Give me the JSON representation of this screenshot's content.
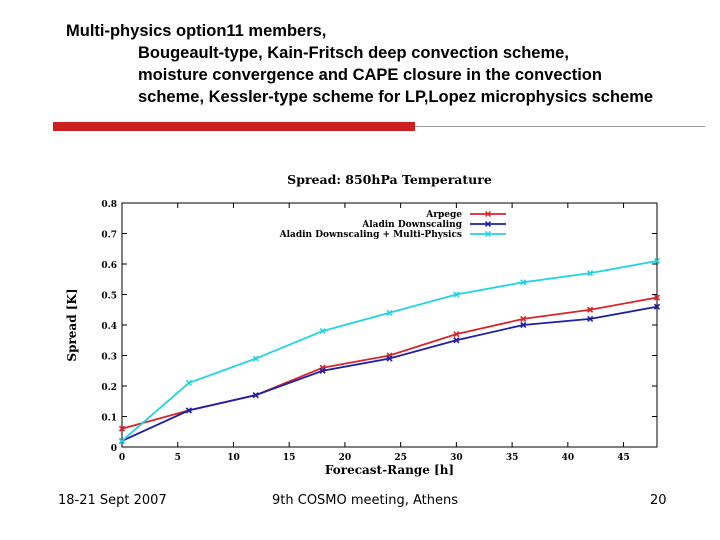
{
  "slide": {
    "title_lines": [
      "Multi-physics option11 members,",
      "Bougeault-type, Kain-Fritsch deep convection scheme,",
      "moisture convergence and CAPE closure in the convection",
      "scheme, Kessler-type scheme for LP,Lopez microphysics scheme"
    ],
    "footer": {
      "left": "18-21 Sept 2007",
      "center": "9th COSMO meeting, Athens",
      "right": "20"
    },
    "accent_color": "#cc1f1f"
  },
  "chart_data": {
    "type": "line",
    "title": "Spread: 850hPa Temperature",
    "xlabel": "Forecast-Range [h]",
    "ylabel": "Spread [K]",
    "xlim": [
      0,
      48
    ],
    "ylim": [
      0,
      0.8
    ],
    "xticks": [
      0,
      5,
      10,
      15,
      20,
      25,
      30,
      35,
      40,
      45
    ],
    "yticks": [
      0,
      0.1,
      0.2,
      0.3,
      0.4,
      0.5,
      0.6,
      0.7,
      0.8
    ],
    "x": [
      0,
      6,
      12,
      18,
      24,
      30,
      36,
      42,
      48
    ],
    "legend_position": "top-right",
    "series": [
      {
        "name": "Arpege",
        "color": "#d9252a",
        "values": [
          0.06,
          0.12,
          0.17,
          0.26,
          0.3,
          0.37,
          0.42,
          0.45,
          0.49
        ]
      },
      {
        "name": "Aladin Downscaling",
        "color": "#1f1fa8",
        "values": [
          0.02,
          0.12,
          0.17,
          0.25,
          0.29,
          0.35,
          0.4,
          0.42,
          0.46
        ]
      },
      {
        "name": "Aladin Downscaling + Multi-Physics",
        "color": "#22d3e0",
        "values": [
          0.02,
          0.21,
          0.29,
          0.38,
          0.44,
          0.5,
          0.54,
          0.57,
          0.61
        ]
      }
    ]
  }
}
